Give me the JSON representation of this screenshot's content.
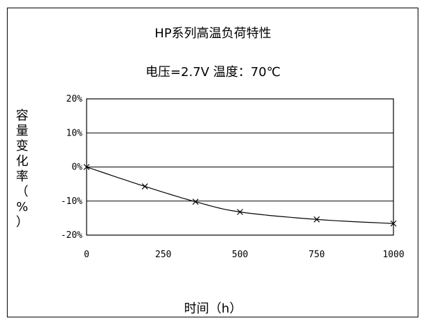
{
  "chart_data": {
    "type": "line",
    "title": "HP系列高温负荷特性",
    "subtitle": "电压=2.7V  温度：70℃",
    "xlabel": "时间（h）",
    "ylabel": "容量变化率（%）",
    "xlim": [
      0,
      1000
    ],
    "ylim": [
      -20,
      20
    ],
    "x_ticks": [
      "0",
      "250",
      "500",
      "750",
      "1000"
    ],
    "y_ticks": [
      "20%",
      "10%",
      "0%",
      "-10%",
      "-20%"
    ],
    "grid": true,
    "series": [
      {
        "x": [
          0,
          190,
          355,
          500,
          750,
          1000
        ],
        "y": [
          0,
          -5.7,
          -10.2,
          -13.2,
          -15.4,
          -16.6
        ]
      }
    ],
    "line_color": "#000000"
  }
}
